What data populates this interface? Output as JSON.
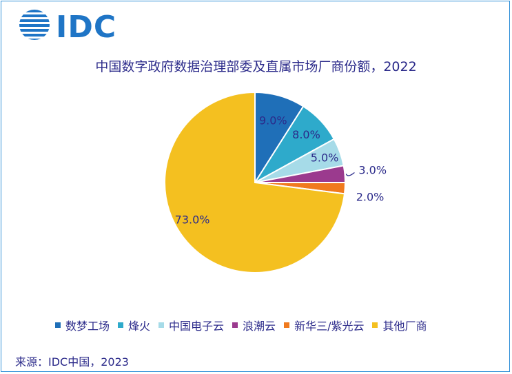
{
  "logo": {
    "text": "IDC"
  },
  "chart_data": {
    "type": "pie",
    "title": "中国数字政府数据治理部委及直属市场厂商份额，2022",
    "categories": [
      "数梦工场",
      "烽火",
      "中国电子云",
      "浪潮云",
      "新华三/紫光云",
      "其他厂商"
    ],
    "values": [
      9.0,
      8.0,
      5.0,
      3.0,
      2.0,
      73.0
    ],
    "data_labels": [
      "9.0%",
      "8.0%",
      "5.0%",
      "3.0%",
      "2.0%",
      "73.0%"
    ],
    "colors": [
      "#1f6fb8",
      "#2eaacb",
      "#a6dbe8",
      "#9b3a8e",
      "#f07a1e",
      "#f4c020"
    ],
    "start_angle_deg": 0,
    "direction": "clockwise",
    "legend_position": "bottom"
  },
  "source": "来源：IDC中国，2023"
}
